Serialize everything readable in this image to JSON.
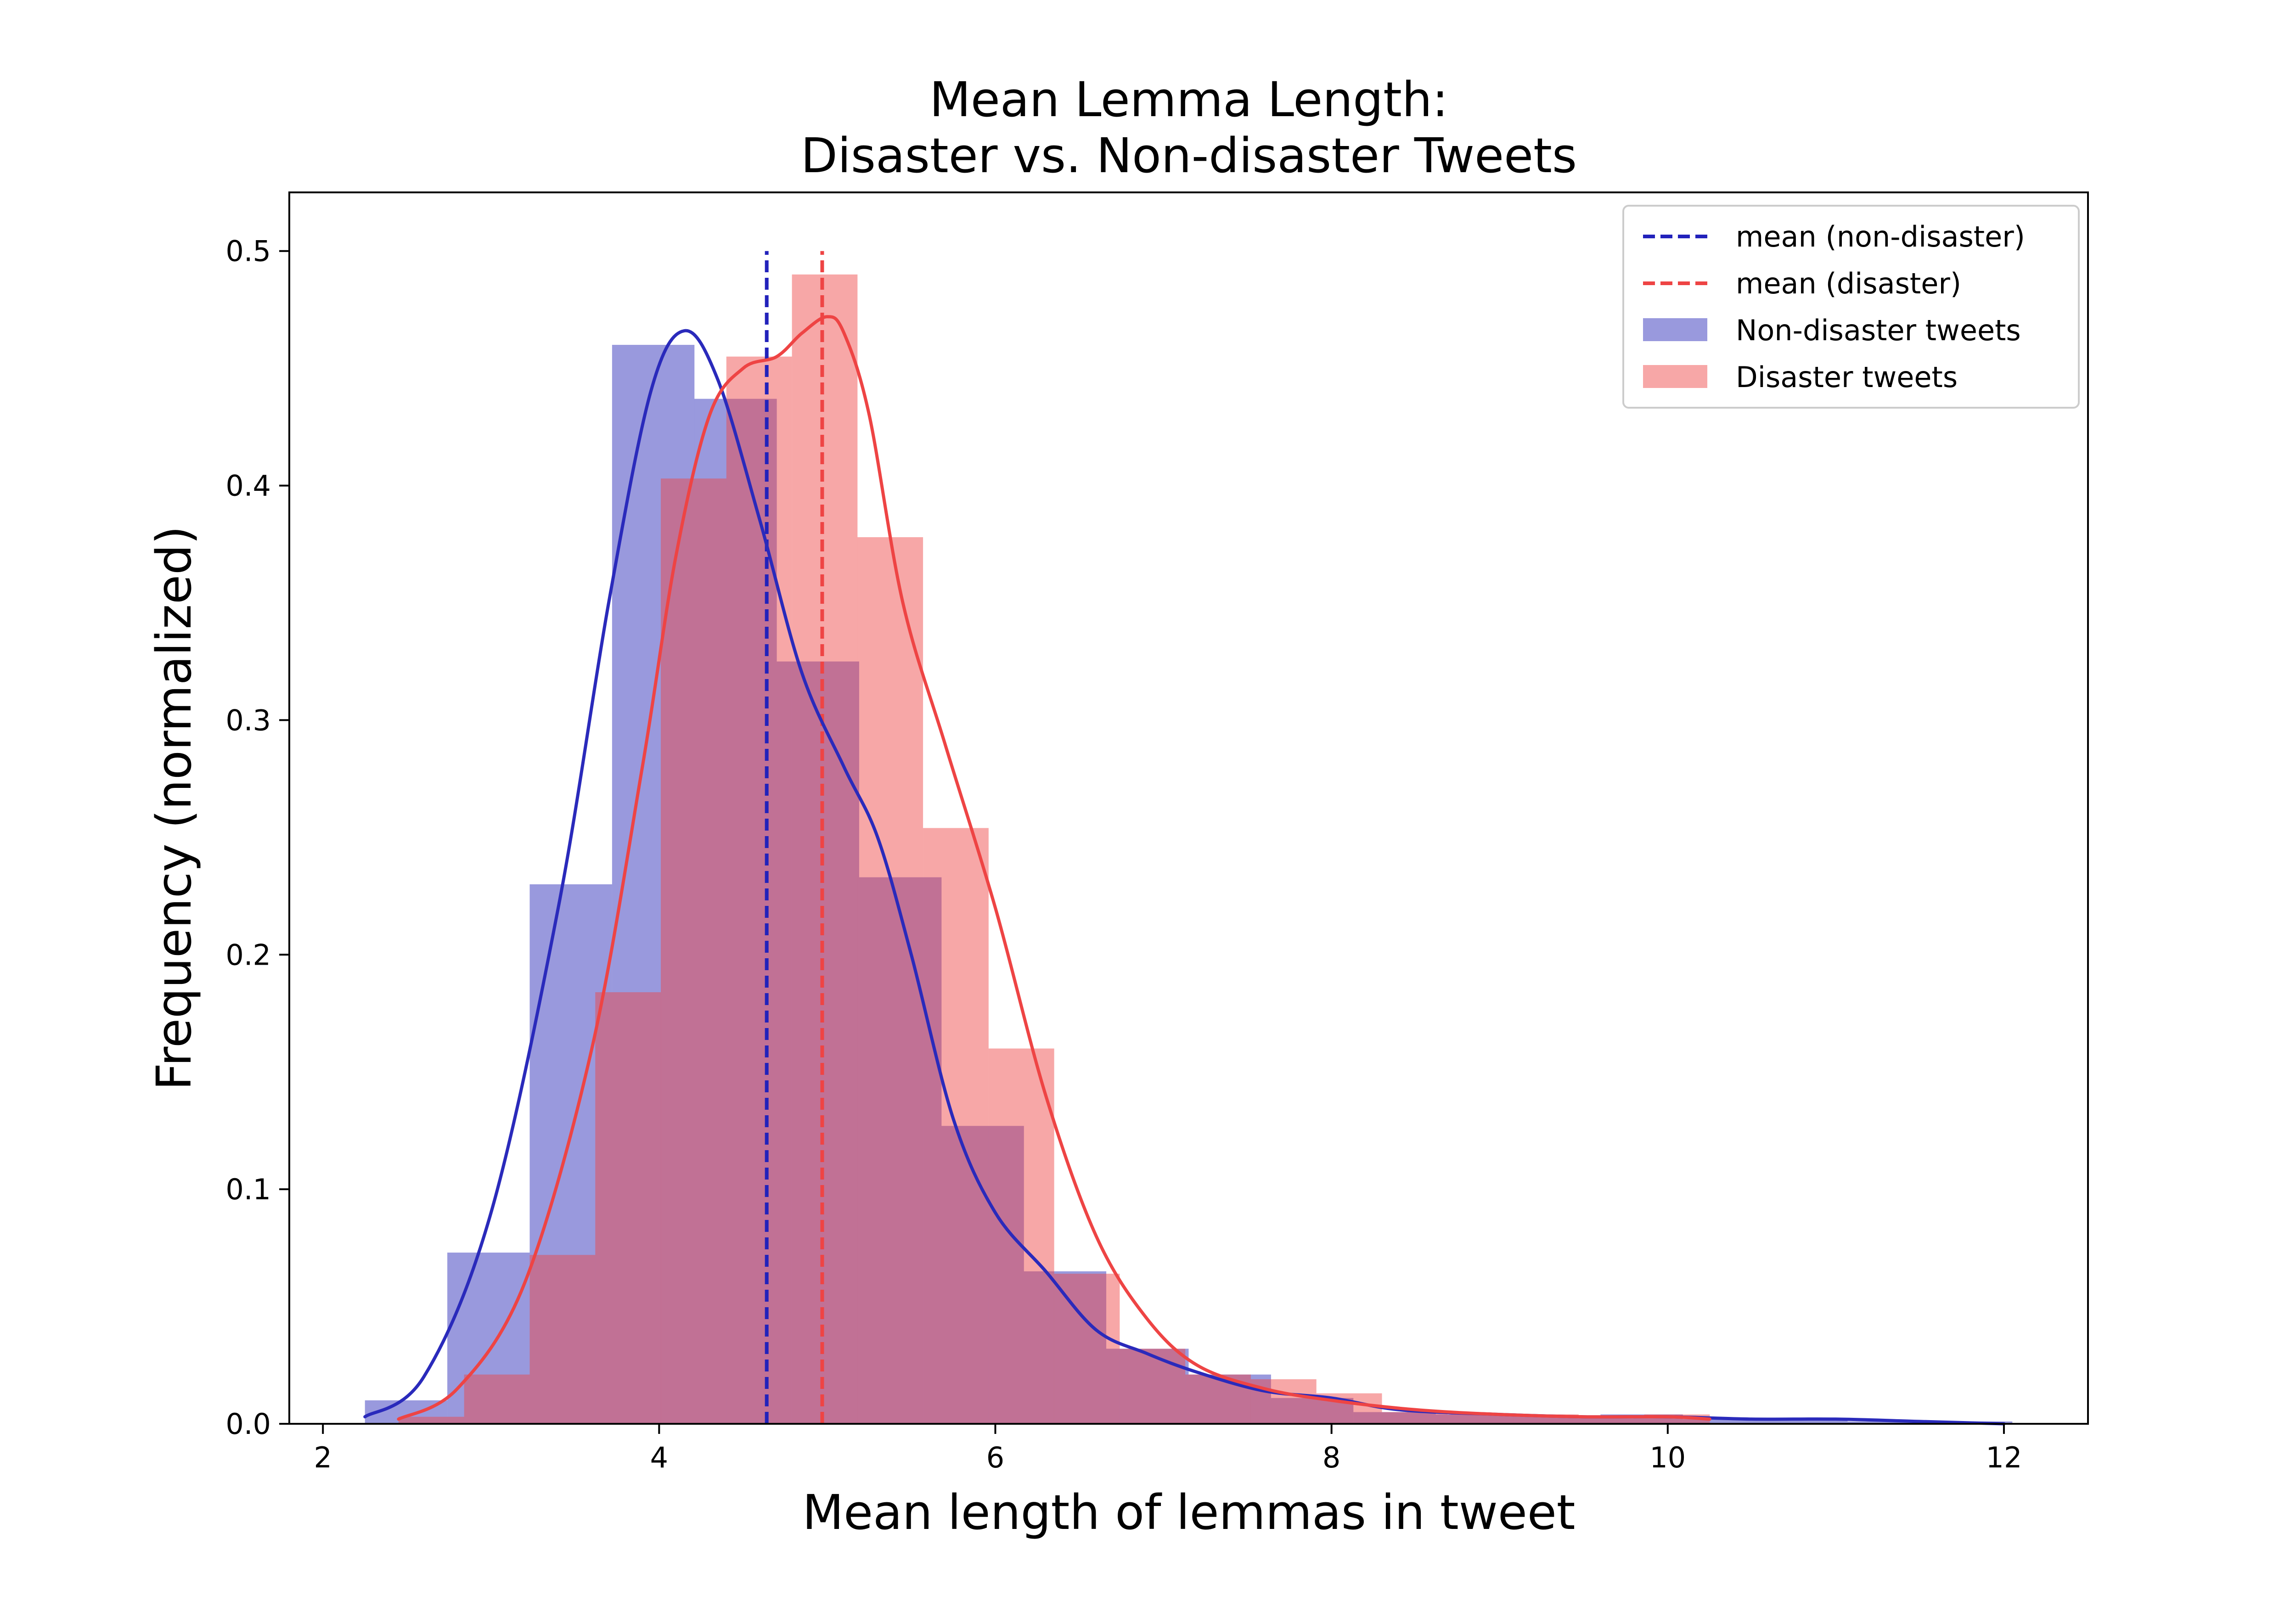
{
  "chart_data": {
    "type": "histogram",
    "title_line1": "Mean Lemma Length:",
    "title_line2": "Disaster vs. Non-disaster Tweets",
    "xlabel": "Mean length of lemmas in tweet",
    "ylabel": "Frequency (normalized)",
    "xlim": [
      1.8,
      12.5
    ],
    "ylim": [
      0.0,
      0.525
    ],
    "x_ticks": [
      2,
      4,
      6,
      8,
      10,
      12
    ],
    "x_tick_labels": [
      "2",
      "4",
      "6",
      "8",
      "10",
      "12"
    ],
    "y_ticks": [
      0.0,
      0.1,
      0.2,
      0.3,
      0.4,
      0.5
    ],
    "y_tick_labels": [
      "0.0",
      "0.1",
      "0.2",
      "0.3",
      "0.4",
      "0.5"
    ],
    "series": [
      {
        "name": "Non-disaster tweets",
        "color": "#3333bb",
        "bin_edges": [
          2.25,
          2.74,
          3.23,
          3.72,
          4.21,
          4.7,
          5.19,
          5.68,
          6.17,
          6.66,
          7.15,
          7.64,
          8.13,
          8.62,
          9.11,
          9.6,
          10.09,
          10.58,
          11.07,
          11.56,
          12.05
        ],
        "heights": [
          0.01,
          0.073,
          0.23,
          0.46,
          0.437,
          0.325,
          0.233,
          0.127,
          0.065,
          0.032,
          0.021,
          0.011,
          0.005,
          0.004,
          0.003,
          0.004,
          0.002,
          0.002,
          0.001,
          0.001
        ],
        "kde_x": [
          2.25,
          2.6,
          3.0,
          3.4,
          3.7,
          3.95,
          4.15,
          4.35,
          4.6,
          4.85,
          5.1,
          5.3,
          5.5,
          5.75,
          6.0,
          6.3,
          6.6,
          6.9,
          7.2,
          7.6,
          8.0,
          8.4,
          9.0,
          9.5,
          10.0,
          10.5,
          11.0,
          11.5,
          12.0
        ],
        "kde_y": [
          0.003,
          0.02,
          0.09,
          0.22,
          0.35,
          0.44,
          0.466,
          0.445,
          0.385,
          0.32,
          0.28,
          0.25,
          0.2,
          0.13,
          0.09,
          0.065,
          0.04,
          0.03,
          0.022,
          0.014,
          0.011,
          0.006,
          0.004,
          0.003,
          0.003,
          0.002,
          0.002,
          0.001,
          0.0
        ]
      },
      {
        "name": "Disaster tweets",
        "color": "#ee4444",
        "bin_edges": [
          2.45,
          2.84,
          3.23,
          3.62,
          4.01,
          4.4,
          4.79,
          5.18,
          5.57,
          5.96,
          6.35,
          6.74,
          7.13,
          7.52,
          7.91,
          8.3,
          8.69,
          9.08,
          9.47,
          9.86,
          10.25
        ],
        "heights": [
          0.003,
          0.021,
          0.072,
          0.184,
          0.403,
          0.455,
          0.49,
          0.378,
          0.254,
          0.16,
          0.064,
          0.032,
          0.021,
          0.019,
          0.013,
          0.005,
          0.004,
          0.004,
          0.003,
          0.004
        ],
        "kde_x": [
          2.45,
          2.8,
          3.2,
          3.6,
          3.9,
          4.1,
          4.3,
          4.5,
          4.7,
          4.85,
          5.0,
          5.1,
          5.25,
          5.45,
          5.7,
          6.0,
          6.3,
          6.6,
          6.9,
          7.2,
          7.6,
          8.0,
          8.5,
          9.0,
          9.5,
          10.0,
          10.25
        ],
        "kde_y": [
          0.002,
          0.015,
          0.06,
          0.16,
          0.28,
          0.37,
          0.43,
          0.45,
          0.455,
          0.465,
          0.472,
          0.465,
          0.43,
          0.35,
          0.29,
          0.22,
          0.14,
          0.08,
          0.045,
          0.025,
          0.015,
          0.01,
          0.006,
          0.004,
          0.003,
          0.003,
          0.002
        ]
      }
    ],
    "mean_lines": [
      {
        "name": "mean (non-disaster)",
        "x": 4.64,
        "color": "#2222bb",
        "top": 0.5
      },
      {
        "name": "mean (disaster)",
        "x": 4.97,
        "color": "#ee4444",
        "top": 0.5
      }
    ],
    "legend": {
      "location": "top-right",
      "entries": [
        {
          "label": "mean (non-disaster)",
          "kind": "dashed-line",
          "color": "#2222bb"
        },
        {
          "label": "mean (disaster)",
          "kind": "dashed-line",
          "color": "#ee4444"
        },
        {
          "label": "Non-disaster tweets",
          "kind": "patch",
          "color": "#3333bb"
        },
        {
          "label": "Disaster tweets",
          "kind": "patch",
          "color": "#ee4444"
        }
      ]
    }
  }
}
